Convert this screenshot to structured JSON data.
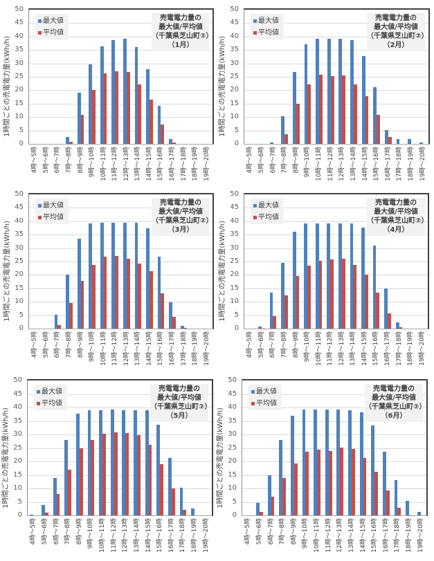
{
  "chart_data": [
    {
      "type": "bar",
      "title": "売電電力量の最大値/平均値（千葉県芝山町②）（1月）",
      "title_lines": [
        "売電電力量の",
        "最大値/平均値",
        "（千葉県芝山町②）",
        "（1月）"
      ],
      "xlabel": "",
      "ylabel": "1時間ごとの売電電力量(kWh/h)",
      "ylim": [
        0,
        50
      ],
      "yticks": [
        0,
        5,
        10,
        15,
        20,
        25,
        30,
        35,
        40,
        45,
        50
      ],
      "grid": true,
      "legend": "top-left",
      "categories": [
        "4時～5時",
        "5時～6時",
        "6時～7時",
        "7時～8時",
        "8時～9時",
        "9時～10時",
        "10時～11時",
        "11時～12時",
        "12時～13時",
        "13時～14時",
        "14時～15時",
        "15時～16時",
        "16時～17時",
        "17時～18時",
        "18時～19時",
        "19時～20時"
      ],
      "series": [
        {
          "name": "最大値",
          "color": "#4f81bd",
          "values": [
            0,
            0,
            0,
            2.6,
            19.0,
            29.6,
            36.3,
            38.6,
            39.2,
            36.1,
            27.8,
            14.2,
            1.8,
            0,
            0,
            0
          ]
        },
        {
          "name": "平均値",
          "color": "#c0504d",
          "values": [
            0,
            0,
            0,
            0.9,
            10.8,
            20.0,
            26.4,
            27.0,
            26.9,
            22.1,
            16.4,
            7.1,
            0.5,
            0,
            0,
            0
          ]
        }
      ]
    },
    {
      "type": "bar",
      "title": "売電電力量の最大値/平均値（千葉県芝山町②）（2月）",
      "title_lines": [
        "売電電力量の",
        "最大値/平均値",
        "（千葉県芝山町②）",
        "（2月）"
      ],
      "xlabel": "",
      "ylabel": "1時間ごとの売電電力量(kWh/h)",
      "ylim": [
        0,
        50
      ],
      "yticks": [
        0,
        5,
        10,
        15,
        20,
        25,
        30,
        35,
        40,
        45,
        50
      ],
      "grid": true,
      "legend": "top-left",
      "categories": [
        "4時～5時",
        "5時～6時",
        "6時～7時",
        "7時～8時",
        "8時～9時",
        "9時～10時",
        "10時～11時",
        "11時～12時",
        "12時～13時",
        "13時～14時",
        "14時～15時",
        "15時～16時",
        "16時～17時",
        "17時～18時",
        "18時～19時",
        "19時～20時"
      ],
      "series": [
        {
          "name": "最大値",
          "color": "#4f81bd",
          "values": [
            0,
            0,
            0.5,
            10.4,
            26.8,
            37.0,
            39.3,
            39.3,
            39.3,
            38.7,
            32.8,
            21.2,
            5.1,
            1.7,
            1.9,
            0.4
          ]
        },
        {
          "name": "平均値",
          "color": "#c0504d",
          "values": [
            0,
            0,
            0,
            3.5,
            15.0,
            22.2,
            25.8,
            25.3,
            25.6,
            22.2,
            17.8,
            10.9,
            2.6,
            0,
            0,
            0
          ]
        }
      ]
    },
    {
      "type": "bar",
      "title": "売電電力量の最大値/平均値（千葉県芝山町②）（3月）",
      "title_lines": [
        "売電電力量の",
        "最大値/平均値",
        "（千葉県芝山町②）",
        "（3月）"
      ],
      "xlabel": "",
      "ylabel": "1時間ごとの売電電力量(kWh/h)",
      "ylim": [
        0,
        50
      ],
      "yticks": [
        0,
        5,
        10,
        15,
        20,
        25,
        30,
        35,
        40,
        45,
        50
      ],
      "grid": true,
      "legend": "top-left",
      "categories": [
        "4時～5時",
        "5時～6時",
        "6時～7時",
        "7時～8時",
        "8時～9時",
        "9時～10時",
        "10時～11時",
        "11時～12時",
        "12時～13時",
        "13時～14時",
        "14時～15時",
        "15時～16時",
        "16時～17時",
        "17時～18時",
        "18時～19時",
        "19時～20時"
      ],
      "series": [
        {
          "name": "最大値",
          "color": "#4f81bd",
          "values": [
            0,
            0,
            5.1,
            20.2,
            33.6,
            39.1,
            39.5,
            39.5,
            39.5,
            39.4,
            37.3,
            26.8,
            9.9,
            1.0,
            0,
            0
          ]
        },
        {
          "name": "平均値",
          "color": "#c0504d",
          "values": [
            0,
            0,
            1.3,
            9.6,
            17.9,
            23.6,
            26.8,
            27.0,
            26.1,
            24.1,
            21.5,
            13.2,
            4.3,
            0.2,
            0,
            0
          ]
        }
      ]
    },
    {
      "type": "bar",
      "title": "売電電力量の最大値/平均値（千葉県芝山町②）（4月）",
      "title_lines": [
        "売電電力量の",
        "最大値/平均値",
        "（千葉県芝山町②）",
        "（4月）"
      ],
      "xlabel": "",
      "ylabel": "1時間ごとの売電電力量(kWh/h)",
      "ylim": [
        0,
        50
      ],
      "yticks": [
        0,
        5,
        10,
        15,
        20,
        25,
        30,
        35,
        40,
        45,
        50
      ],
      "grid": true,
      "legend": "top-left",
      "categories": [
        "4時～5時",
        "5時～6時",
        "6時～7時",
        "7時～8時",
        "8時～9時",
        "9時～10時",
        "10時～11時",
        "11時～12時",
        "12時～13時",
        "13時～14時",
        "14時～15時",
        "15時～16時",
        "16時～17時",
        "17時～18時",
        "18時～19時",
        "19時～20時"
      ],
      "series": [
        {
          "name": "最大値",
          "color": "#4f81bd",
          "values": [
            0,
            0.9,
            13.5,
            24.6,
            36.2,
            39.1,
            39.1,
            39.1,
            39.1,
            39.1,
            37.7,
            31.0,
            15.0,
            2.2,
            0,
            0
          ]
        },
        {
          "name": "平均値",
          "color": "#c0504d",
          "values": [
            0,
            0.1,
            4.6,
            12.4,
            19.7,
            23.5,
            25.2,
            25.8,
            26.1,
            23.8,
            20.0,
            13.4,
            5.6,
            0.6,
            0,
            0
          ]
        }
      ]
    },
    {
      "type": "bar",
      "title": "売電電力量の最大値/平均値（千葉県芝山町②）（5月）",
      "title_lines": [
        "売電電力量の",
        "最大値/平均値",
        "（千葉県芝山町②）",
        "（5月）"
      ],
      "xlabel": "",
      "ylabel": "1時間ごとの売電電力量(kWh/h)",
      "ylim": [
        0,
        50
      ],
      "yticks": [
        0,
        5,
        10,
        15,
        20,
        25,
        30,
        35,
        40,
        45,
        50
      ],
      "grid": true,
      "legend": "top-left",
      "categories": [
        "4時～5時",
        "5時～6時",
        "6時～7時",
        "7時～8時",
        "8時～9時",
        "9時～10時",
        "10時～11時",
        "11時～12時",
        "12時～13時",
        "13時～14時",
        "14時～15時",
        "15時～16時",
        "16時～17時",
        "17時～18時",
        "18時～19時",
        "19時～20時"
      ],
      "series": [
        {
          "name": "最大値",
          "color": "#4f81bd",
          "values": [
            0.2,
            3.8,
            13.8,
            27.9,
            37.6,
            39.1,
            39.1,
            39.3,
            39.1,
            39.1,
            39.0,
            33.6,
            21.3,
            10.2,
            2.6,
            0
          ]
        },
        {
          "name": "平均値",
          "color": "#c0504d",
          "values": [
            0,
            1.0,
            7.9,
            16.8,
            25.0,
            27.9,
            30.3,
            30.7,
            30.6,
            29.8,
            26.2,
            19.0,
            9.9,
            2.1,
            0,
            0
          ]
        }
      ]
    },
    {
      "type": "bar",
      "title": "売電電力量の最大値/平均値（千葉県芝山町②）（6月）",
      "title_lines": [
        "売電電力量の",
        "最大値/平均値",
        "（千葉県芝山町②）",
        "（6月）"
      ],
      "xlabel": "",
      "ylabel": "1時間ごとの売電電力量(kWh/h)",
      "ylim": [
        0,
        50
      ],
      "yticks": [
        0,
        5,
        10,
        15,
        20,
        25,
        30,
        35,
        40,
        45,
        50
      ],
      "grid": true,
      "legend": "top-left",
      "categories": [
        "4時～5時",
        "5時～6時",
        "6時～7時",
        "7時～8時",
        "8時～9時",
        "9時～10時",
        "10時～11時",
        "11時～12時",
        "12時～13時",
        "13時～14時",
        "14時～15時",
        "15時～16時",
        "16時～17時",
        "17時～18時",
        "18時～19時",
        "19時～20時"
      ],
      "series": [
        {
          "name": "最大値",
          "color": "#4f81bd",
          "values": [
            0,
            4.6,
            14.8,
            27.9,
            36.8,
            39.3,
            39.3,
            39.3,
            39.3,
            39.1,
            38.1,
            33.3,
            23.6,
            13.0,
            5.3,
            1.3
          ]
        },
        {
          "name": "平均値",
          "color": "#c0504d",
          "values": [
            0,
            1.3,
            6.8,
            13.8,
            19.3,
            23.5,
            24.4,
            23.8,
            25.1,
            24.5,
            21.4,
            16.1,
            9.2,
            2.8,
            0.1,
            0
          ]
        }
      ]
    }
  ]
}
